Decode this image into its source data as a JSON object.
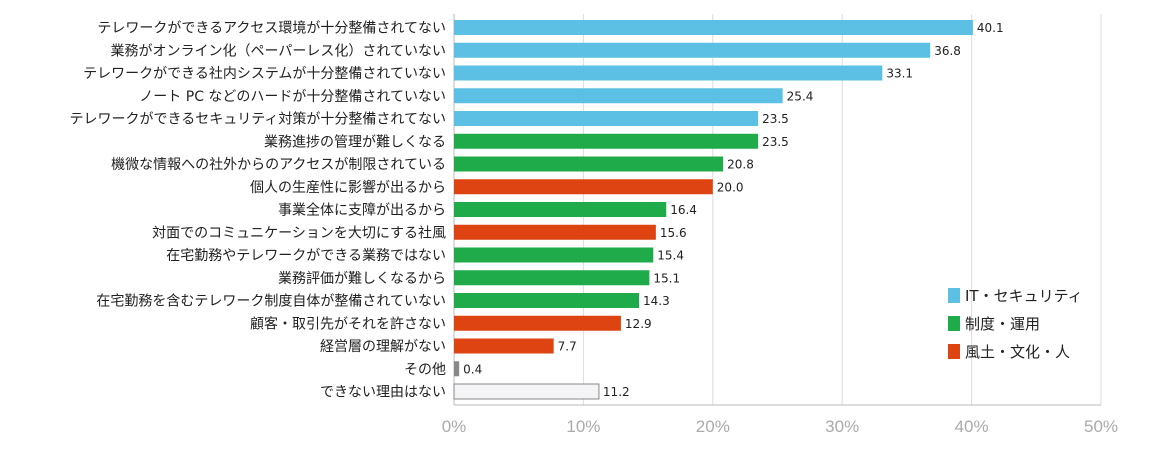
{
  "chart_data": {
    "type": "bar",
    "orientation": "horizontal",
    "title": "",
    "xlabel": "",
    "ylabel": "",
    "xlim": [
      0,
      50
    ],
    "x_ticks": [
      "0%",
      "10%",
      "20%",
      "30%",
      "40%",
      "50%"
    ],
    "grid": true,
    "legend_position": "bottom-right",
    "groups": [
      {
        "name": "IT・セキュリティ",
        "color": "#5bc0e4"
      },
      {
        "name": "制度・運用",
        "color": "#1fab4a"
      },
      {
        "name": "風土・文化・人",
        "color": "#dd4411"
      }
    ],
    "other_colors": {
      "その他": "#888888",
      "できない理由はない": "#f4f3f6"
    },
    "categories": [
      "テレワークができるアクセス環境が十分整備されてない",
      "業務がオンライン化（ペーパーレス化）されていない",
      "テレワークができる社内システムが十分整備されていない",
      "ノート PC などのハードが十分整備されていない",
      "テレワークができるセキュリティ対策が十分整備されてない",
      "業務進捗の管理が難しくなる",
      "機微な情報への社外からのアクセスが制限されている",
      "個人の生産性に影響が出るから",
      "事業全体に支障が出るから",
      "対面でのコミュニケーションを大切にする社風",
      "在宅勤務やテレワークができる業務ではない",
      "業務評価が難しくなるから",
      "在宅勤務を含むテレワーク制度自体が整備されていない",
      "顧客・取引先がそれを許さない",
      "経営層の理解がない",
      "その他",
      "できない理由はない"
    ],
    "values": [
      40.1,
      36.8,
      33.1,
      25.4,
      23.5,
      23.5,
      20.8,
      20.0,
      16.4,
      15.6,
      15.4,
      15.1,
      14.3,
      12.9,
      7.7,
      0.4,
      11.2
    ],
    "value_labels": [
      "40.1",
      "36.8",
      "33.1",
      "25.4",
      "23.5",
      "23.5",
      "20.8",
      "20.0",
      "16.4",
      "15.6",
      "15.4",
      "15.1",
      "14.3",
      "12.9",
      "7.7",
      "0.4",
      "11.2"
    ],
    "category_group": [
      "IT・セキュリティ",
      "IT・セキュリティ",
      "IT・セキュリティ",
      "IT・セキュリティ",
      "IT・セキュリティ",
      "制度・運用",
      "制度・運用",
      "風土・文化・人",
      "制度・運用",
      "風土・文化・人",
      "制度・運用",
      "制度・運用",
      "制度・運用",
      "風土・文化・人",
      "風土・文化・人",
      "その他",
      "できない理由はない"
    ]
  }
}
